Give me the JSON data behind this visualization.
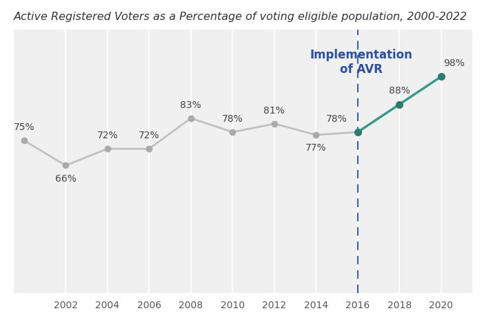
{
  "title": "Active Registered Voters as a Percentage of voting eligible population, 2000-2022",
  "years": [
    2000,
    2002,
    2004,
    2006,
    2008,
    2010,
    2012,
    2014,
    2016,
    2018,
    2020
  ],
  "values": [
    75,
    66,
    72,
    72,
    83,
    78,
    81,
    77,
    78,
    88,
    98
  ],
  "labels": [
    "75%",
    "66%",
    "72%",
    "72%",
    "83%",
    "78%",
    "81%",
    "77%",
    "78%",
    "88%",
    "98%"
  ],
  "avr_year": 2016,
  "avr_label": "Implementation\nof AVR",
  "pre_avr_color": "#c0c0c0",
  "post_avr_color": "#3a9a8a",
  "marker_color_pre": "#aaaaaa",
  "marker_color_post": "#2d7a6e",
  "background_color": "#ffffff",
  "plot_bg_color": "#f0f0f0",
  "title_fontsize": 11.5,
  "annotation_fontsize": 10,
  "avr_label_color": "#2b4fa0",
  "vline_color": "#4060a0",
  "xlim": [
    1999.5,
    2021.5
  ],
  "ylim": [
    20,
    115
  ],
  "xticks": [
    2002,
    2004,
    2006,
    2008,
    2010,
    2012,
    2014,
    2016,
    2018,
    2020
  ],
  "grid_color": "#ffffff",
  "label_color": "#444444"
}
